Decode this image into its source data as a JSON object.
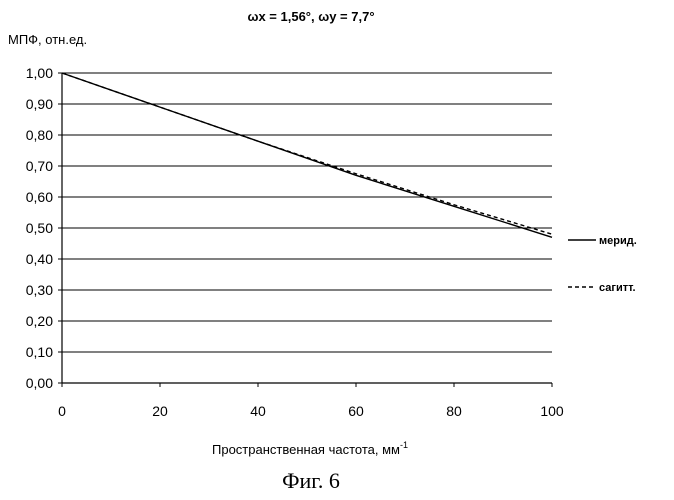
{
  "chart_data": {
    "type": "line",
    "title": "ωx = 1,56°, ωy = 7,7°",
    "ylabel": "МПФ, отн.ед.",
    "xlabel_text": "Пространственная частота, мм",
    "xlabel_sup": "-1",
    "xlim": [
      0,
      100
    ],
    "ylim": [
      0,
      1
    ],
    "x_ticks": [
      0,
      20,
      40,
      60,
      80,
      100
    ],
    "x_tick_labels": [
      "0",
      "20",
      "40",
      "60",
      "80",
      "100"
    ],
    "y_ticks": [
      0,
      0.1,
      0.2,
      0.3,
      0.4,
      0.5,
      0.6,
      0.7,
      0.8,
      0.9,
      1.0
    ],
    "y_tick_labels": [
      "0,00",
      "0,10",
      "0,20",
      "0,30",
      "0,40",
      "0,50",
      "0,60",
      "0,70",
      "0,80",
      "0,90",
      "1,00"
    ],
    "grid": "horizontal",
    "legend_position": "right",
    "series": [
      {
        "name": "мерид.",
        "style": "solid",
        "color": "#000000",
        "x": [
          0,
          20,
          40,
          60,
          80,
          100
        ],
        "y": [
          1.0,
          0.89,
          0.78,
          0.67,
          0.57,
          0.47
        ]
      },
      {
        "name": "сагитт.",
        "style": "dashed",
        "color": "#000000",
        "x": [
          0,
          20,
          40,
          60,
          80,
          100
        ],
        "y": [
          1.0,
          0.89,
          0.78,
          0.675,
          0.575,
          0.48
        ]
      }
    ]
  },
  "caption": "Фиг. 6"
}
